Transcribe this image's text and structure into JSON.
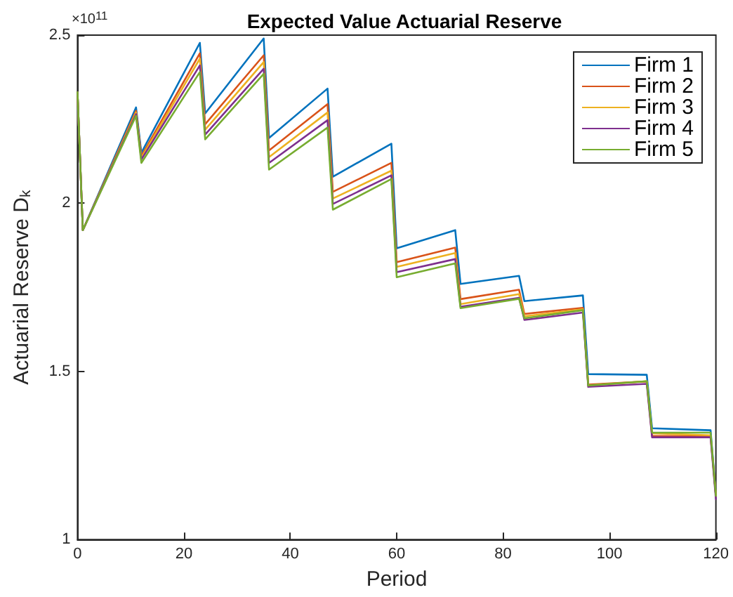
{
  "chart_data": {
    "type": "line",
    "title": "Expected Value Actuarial Reserve",
    "xlabel": "Period",
    "ylabel": "Actuarial Reserve D$_{k}$",
    "annotations": [
      "×10$^{11}$"
    ],
    "x": [
      0,
      1,
      11,
      12,
      23,
      24,
      35,
      36,
      47,
      48,
      59,
      60,
      71,
      72,
      83,
      84,
      95,
      96,
      107,
      108,
      119,
      120
    ],
    "series": [
      {
        "name": "Firm 1",
        "color": "#0072bd",
        "values": [
          2.33,
          1.92,
          2.285,
          2.15,
          2.477,
          2.267,
          2.49,
          2.194,
          2.341,
          2.079,
          2.177,
          1.866,
          1.92,
          1.76,
          1.784,
          1.709,
          1.726,
          1.492,
          1.49,
          1.331,
          1.325,
          1.13
        ]
      },
      {
        "name": "Firm 2",
        "color": "#d95319",
        "values": [
          2.33,
          1.92,
          2.275,
          2.14,
          2.446,
          2.235,
          2.44,
          2.157,
          2.295,
          2.034,
          2.12,
          1.825,
          1.868,
          1.715,
          1.743,
          1.671,
          1.689,
          1.461,
          1.47,
          1.308,
          1.308,
          1.13
        ]
      },
      {
        "name": "Firm 3",
        "color": "#edb120",
        "values": [
          2.33,
          1.92,
          2.27,
          2.135,
          2.43,
          2.219,
          2.42,
          2.137,
          2.27,
          2.014,
          2.097,
          1.811,
          1.852,
          1.7,
          1.73,
          1.664,
          1.685,
          1.458,
          1.471,
          1.316,
          1.31,
          1.13
        ]
      },
      {
        "name": "Firm 4",
        "color": "#7e2f8e",
        "values": [
          2.33,
          1.92,
          2.265,
          2.13,
          2.41,
          2.204,
          2.4,
          2.12,
          2.247,
          1.998,
          2.083,
          1.795,
          1.834,
          1.692,
          1.719,
          1.653,
          1.675,
          1.454,
          1.463,
          1.304,
          1.304,
          1.12
        ]
      },
      {
        "name": "Firm 5",
        "color": "#77ac30",
        "values": [
          2.33,
          1.92,
          2.26,
          2.12,
          2.39,
          2.19,
          2.385,
          2.1,
          2.225,
          1.981,
          2.072,
          1.78,
          1.821,
          1.688,
          1.716,
          1.658,
          1.682,
          1.458,
          1.471,
          1.318,
          1.318,
          1.13
        ]
      }
    ],
    "xlim": [
      0,
      120
    ],
    "xticks": [
      0,
      20,
      40,
      60,
      80,
      100,
      120
    ],
    "ylim": [
      1,
      2.5
    ],
    "yticks": [
      1,
      1.5,
      2,
      2.5
    ],
    "legend": "top right",
    "grid": false,
    "marker": "none",
    "line_style": "solid"
  }
}
